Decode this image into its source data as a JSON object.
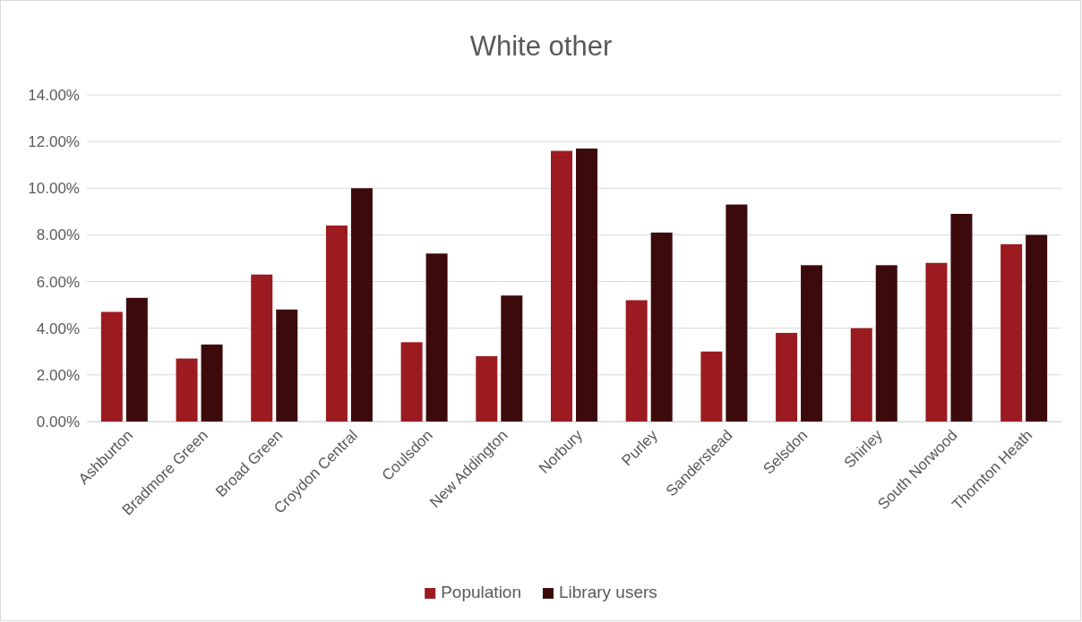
{
  "chart_data": {
    "type": "bar",
    "title": "White other",
    "categories": [
      "Ashburton",
      "Bradmore Green",
      "Broad Green",
      "Croydon Central",
      "Coulsdon",
      "New Addington",
      "Norbury",
      "Purley",
      "Sanderstead",
      "Selsdon",
      "Shirley",
      "South Norwood",
      "Thornton Heath"
    ],
    "series": [
      {
        "name": "Population",
        "color": "#9b1b20",
        "values": [
          4.7,
          2.7,
          6.3,
          8.4,
          3.4,
          2.8,
          11.6,
          5.2,
          3.0,
          3.8,
          4.0,
          6.8,
          7.6
        ]
      },
      {
        "name": "Library users",
        "color": "#3d0a0c",
        "values": [
          5.3,
          3.3,
          4.8,
          10.0,
          7.2,
          5.4,
          11.7,
          8.1,
          9.3,
          6.7,
          6.7,
          8.9,
          8.0
        ]
      }
    ],
    "ylim": [
      0,
      14
    ],
    "yticks": [
      {
        "value": 0,
        "label": "0.00%"
      },
      {
        "value": 2,
        "label": "2.00%"
      },
      {
        "value": 4,
        "label": "4.00%"
      },
      {
        "value": 6,
        "label": "6.00%"
      },
      {
        "value": 8,
        "label": "8.00%"
      },
      {
        "value": 10,
        "label": "10.00%"
      },
      {
        "value": 12,
        "label": "12.00%"
      },
      {
        "value": 14,
        "label": "14.00%"
      }
    ],
    "grid": "y",
    "legend": "bottom"
  }
}
